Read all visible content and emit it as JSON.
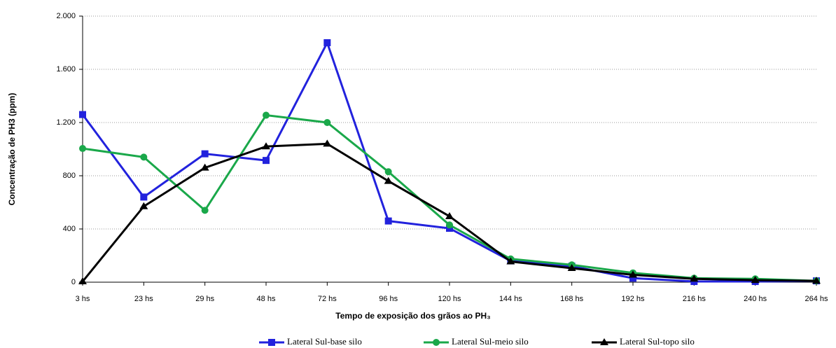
{
  "chart_data": {
    "type": "line",
    "xlabel": "Tempo de exposição dos grãos ao PH₃",
    "ylabel": "Concentração de PH3 (ppm)",
    "categories": [
      "3 hs",
      "23 hs",
      "29 hs",
      "48 hs",
      "72 hs",
      "96 hs",
      "120 hs",
      "144 hs",
      "168 hs",
      "192 hs",
      "216 hs",
      "240 hs",
      "264 hs"
    ],
    "series": [
      {
        "name": "Lateral Sul-base silo",
        "color": "#2222dd",
        "marker": "square",
        "values": [
          1260,
          640,
          965,
          915,
          1800,
          460,
          405,
          160,
          120,
          30,
          5,
          5,
          10
        ]
      },
      {
        "name": "Lateral Sul-meio silo",
        "color": "#1aa84a",
        "marker": "circle",
        "values": [
          1005,
          940,
          540,
          1255,
          1200,
          830,
          430,
          175,
          130,
          70,
          30,
          25,
          10
        ]
      },
      {
        "name": "Lateral Sul-topo silo",
        "color": "#000000",
        "marker": "triangle",
        "values": [
          5,
          570,
          860,
          1020,
          1040,
          760,
          495,
          155,
          105,
          55,
          25,
          15,
          10
        ]
      }
    ],
    "ylim": [
      0,
      2000
    ],
    "yticks": [
      0,
      400,
      800,
      {
        "value": 1200,
        "label": "1.200"
      },
      {
        "value": 1600,
        "label": "1.600"
      },
      {
        "value": 2000,
        "label": "2.000"
      }
    ],
    "grid": true,
    "legend": "bottom"
  }
}
